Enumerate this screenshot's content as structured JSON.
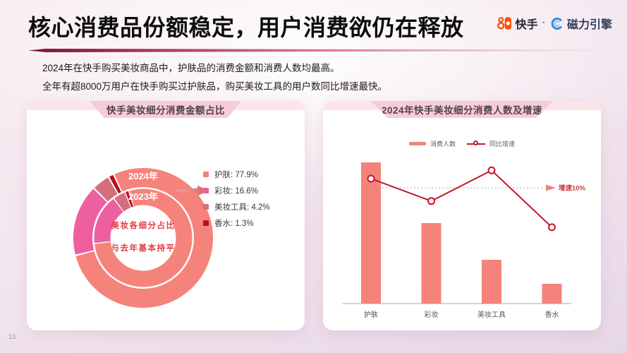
{
  "page": {
    "number": "13"
  },
  "header": {
    "title": "核心消费品份额稳定，用户消费欲仍在释放",
    "brand": {
      "kuaishou": "快手",
      "separator": "·",
      "cili": "磁力引擎"
    }
  },
  "intro": {
    "line1": "2024年在快手购买美妆商品中，护肤品的消费金额和消费人数均最高。",
    "line2": "全年有超8000万用户在快手购买过护肤品，购买美妆工具的用户数同比增速最快。"
  },
  "left_card": {
    "title": "快手美妆细分消费金额占比",
    "ring_labels": {
      "outer": "2024年",
      "inner": "2023年"
    },
    "center_text": {
      "line1": "美妆各细分占比",
      "line2": "与去年基本持平"
    },
    "legend": [
      {
        "text": "护肤: 77.9%"
      },
      {
        "text": "彩妆: 16.6%"
      },
      {
        "text": "美妆工具: 4.2%"
      },
      {
        "text": "香水: 1.3%"
      }
    ]
  },
  "right_card": {
    "title": "2024年快手美妆细分消费人数及增速",
    "legend": {
      "bars": "消费人数",
      "line": "同比增速"
    },
    "annotation": "增速10%"
  },
  "colors": {
    "skincare_salmon": "#F5837B",
    "makeup_pink": "#EE5FA0",
    "tools_rose": "#D4707E",
    "perfume_darkred": "#B60F1F",
    "growth_line_red": "#C2182B",
    "divider_maroon": "#7E1430",
    "kuaishou_orange": "#FF4E00",
    "cili_blue": "#2E8AE6"
  },
  "chart_data": [
    {
      "type": "pie",
      "subtype": "double_ring_donut",
      "title": "快手美妆细分消费金额占比",
      "categories": [
        "护肤",
        "彩妆",
        "美妆工具",
        "香水"
      ],
      "rings": [
        {
          "label": "2024年",
          "values_pct": [
            77.9,
            16.6,
            4.2,
            1.3
          ]
        },
        {
          "label": "2023年",
          "values_pct": [
            77.9,
            16.6,
            4.2,
            1.3
          ]
        }
      ],
      "colors": [
        "#F5837B",
        "#EE5FA0",
        "#D4707E",
        "#B60F1F"
      ],
      "center_text": [
        "美妆各细分占比",
        "与去年基本持平"
      ],
      "legend_labels": [
        "护肤: 77.9%",
        "彩妆: 16.6%",
        "美妆工具: 4.2%",
        "香水: 1.3%"
      ]
    },
    {
      "type": "bar",
      "subtype": "bar_plus_line",
      "title": "2024年快手美妆细分消费人数及增速",
      "categories": [
        "护肤",
        "彩妆",
        "美妆工具",
        "香水"
      ],
      "series": [
        {
          "name": "消费人数",
          "type": "bar",
          "unit": "relative_index_skincare_100",
          "values": [
            100,
            57,
            31,
            14
          ],
          "color": "#F5837B"
        },
        {
          "name": "同比增速",
          "type": "line",
          "unit": "pct_estimated_from_plot",
          "values": [
            12,
            7.1,
            13.8,
            1.4
          ],
          "color": "#C2182B"
        }
      ],
      "reference_line": {
        "label": "增速10%",
        "value": 10,
        "style": "dotted"
      },
      "legend_position": "top",
      "grid": false
    }
  ]
}
